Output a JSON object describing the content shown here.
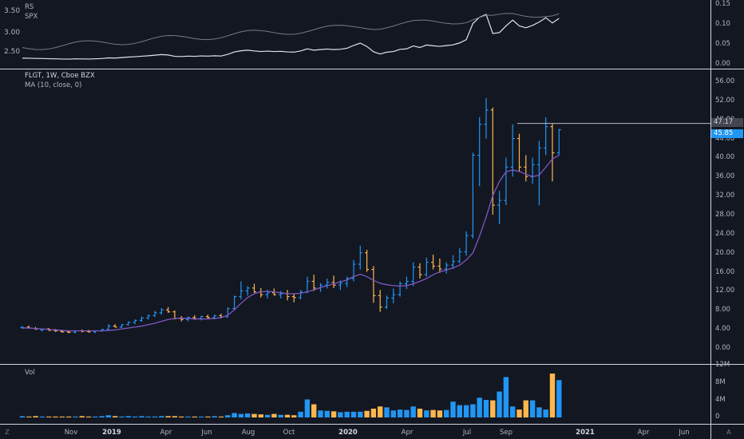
{
  "rs_pane": {
    "labels": [
      "RS",
      "SPX"
    ],
    "left_ticks": [
      "3.50",
      "3.00",
      "2.50"
    ],
    "right_ticks": [
      "0.15",
      "0.10",
      "0.05",
      "0.00"
    ]
  },
  "main_pane": {
    "symbol_line": "FLGT, 1W, Cboe BZX",
    "ma_line": "MA (10, close, 0)",
    "price_ticks": [
      "56.00",
      "52.00",
      "48.00",
      "44.00",
      "40.00",
      "36.00",
      "32.00",
      "28.00",
      "24.00",
      "20.00",
      "16.00",
      "12.00",
      "8.00",
      "4.00",
      "0.00"
    ],
    "tag_high": "47.17",
    "tag_last": "45.85",
    "colors": {
      "up": "#2196f3",
      "down": "#ffb74d",
      "ma": "#7e57c2",
      "tag_last_bg": "#2196f3",
      "tag_high_bg": "#787b86"
    }
  },
  "volume_pane": {
    "label": "Vol",
    "ticks": [
      "12M",
      "8M",
      "4M",
      "0"
    ]
  },
  "time_axis": {
    "labels": [
      "Nov",
      "2019",
      "Apr",
      "Jun",
      "Aug",
      "Oct",
      "2020",
      "Apr",
      "Jul",
      "Sep",
      "2021",
      "Apr",
      "Jun"
    ],
    "bold": [
      false,
      true,
      false,
      false,
      false,
      false,
      true,
      false,
      false,
      false,
      true,
      false,
      false
    ]
  },
  "corner": {
    "left_icon": "Z",
    "right_icon": "A"
  },
  "chart_data": {
    "type": "ohlc",
    "title": "FLGT, 1W, Cboe BZX",
    "ylim": [
      0,
      56
    ],
    "series": [
      {
        "name": "MA (10, close, 0)",
        "values": [
          4.2,
          4.2,
          4.1,
          4.0,
          3.9,
          3.8,
          3.7,
          3.6,
          3.6,
          3.6,
          3.6,
          3.6,
          3.6,
          3.7,
          3.8,
          4.0,
          4.2,
          4.4,
          4.6,
          4.9,
          5.2,
          5.6,
          6.0,
          6.2,
          6.3,
          6.2,
          6.1,
          6.1,
          6.1,
          6.2,
          6.4,
          6.9,
          8.0,
          9.4,
          10.6,
          11.4,
          11.8,
          11.9,
          11.8,
          11.6,
          11.4,
          11.4,
          11.5,
          11.8,
          12.2,
          12.7,
          13.1,
          13.5,
          13.9,
          14.3,
          15.0,
          15.5,
          15.0,
          14.2,
          13.6,
          13.3,
          13.1,
          13.0,
          13.1,
          13.5,
          14.0,
          14.6,
          15.4,
          16.0,
          16.4,
          16.8,
          17.4,
          18.5,
          20.0,
          23.5,
          27.5,
          32.0,
          35.0,
          37.0,
          37.4,
          37.1,
          36.5,
          36.0,
          36.3,
          38.0,
          39.7,
          40.5
        ]
      }
    ],
    "bars": [
      [
        4.3,
        4.6,
        4.0,
        4.3
      ],
      [
        4.4,
        4.7,
        4.1,
        4.2
      ],
      [
        4.1,
        4.4,
        3.8,
        4.0
      ],
      [
        3.8,
        4.1,
        3.5,
        3.9
      ],
      [
        4.0,
        4.2,
        3.6,
        3.7
      ],
      [
        3.7,
        4.0,
        3.4,
        3.6
      ],
      [
        3.5,
        3.8,
        3.2,
        3.4
      ],
      [
        3.4,
        3.7,
        3.1,
        3.3
      ],
      [
        3.3,
        3.7,
        3.1,
        3.6
      ],
      [
        3.6,
        3.9,
        3.3,
        3.5
      ],
      [
        3.5,
        3.8,
        3.2,
        3.4
      ],
      [
        3.4,
        3.7,
        3.1,
        3.6
      ],
      [
        3.6,
        4.0,
        3.4,
        3.9
      ],
      [
        3.9,
        5.0,
        3.7,
        4.6
      ],
      [
        4.6,
        5.0,
        4.3,
        4.4
      ],
      [
        4.4,
        5.0,
        4.2,
        4.9
      ],
      [
        4.9,
        5.6,
        4.7,
        5.4
      ],
      [
        5.4,
        6.0,
        5.0,
        5.8
      ],
      [
        5.8,
        6.6,
        5.5,
        6.3
      ],
      [
        6.3,
        7.0,
        6.0,
        6.8
      ],
      [
        6.8,
        7.8,
        6.5,
        7.4
      ],
      [
        7.4,
        8.4,
        7.0,
        8.0
      ],
      [
        8.0,
        8.6,
        7.4,
        7.6
      ],
      [
        7.6,
        7.9,
        6.0,
        6.2
      ],
      [
        6.2,
        6.7,
        5.6,
        6.0
      ],
      [
        6.0,
        6.6,
        5.6,
        6.4
      ],
      [
        6.4,
        6.9,
        5.9,
        6.2
      ],
      [
        6.2,
        6.8,
        5.8,
        6.6
      ],
      [
        6.6,
        7.0,
        6.1,
        6.4
      ],
      [
        6.4,
        7.0,
        6.0,
        6.8
      ],
      [
        6.8,
        7.2,
        6.2,
        6.5
      ],
      [
        6.5,
        8.5,
        6.4,
        8.3
      ],
      [
        8.3,
        11.0,
        8.0,
        10.8
      ],
      [
        10.8,
        14.0,
        10.2,
        12.0
      ],
      [
        12.0,
        13.0,
        11.0,
        12.6
      ],
      [
        12.6,
        13.5,
        11.6,
        11.8
      ],
      [
        11.8,
        12.6,
        10.6,
        11.2
      ],
      [
        11.2,
        12.2,
        10.4,
        11.6
      ],
      [
        11.6,
        12.5,
        11.0,
        11.2
      ],
      [
        11.2,
        12.0,
        10.4,
        11.4
      ],
      [
        11.4,
        12.2,
        10.0,
        10.8
      ],
      [
        10.8,
        11.4,
        9.6,
        10.6
      ],
      [
        10.6,
        12.2,
        10.2,
        11.8
      ],
      [
        11.8,
        15.0,
        11.5,
        14.0
      ],
      [
        14.0,
        15.4,
        12.0,
        12.6
      ],
      [
        12.6,
        13.6,
        11.8,
        13.2
      ],
      [
        13.2,
        14.6,
        12.5,
        13.8
      ],
      [
        13.8,
        15.2,
        12.6,
        13.2
      ],
      [
        13.2,
        14.2,
        12.2,
        13.6
      ],
      [
        13.6,
        15.0,
        12.8,
        14.6
      ],
      [
        14.6,
        18.5,
        14.0,
        17.6
      ],
      [
        17.6,
        21.5,
        16.5,
        20.0
      ],
      [
        20.0,
        20.6,
        16.0,
        16.5
      ],
      [
        16.5,
        17.2,
        9.5,
        11.0
      ],
      [
        11.0,
        12.2,
        7.6,
        8.6
      ],
      [
        8.6,
        11.0,
        8.2,
        10.5
      ],
      [
        10.5,
        12.5,
        9.4,
        11.2
      ],
      [
        11.2,
        14.0,
        10.8,
        13.5
      ],
      [
        13.5,
        15.0,
        12.4,
        14.0
      ],
      [
        14.0,
        18.0,
        13.0,
        17.0
      ],
      [
        17.0,
        17.8,
        14.6,
        15.4
      ],
      [
        15.4,
        19.0,
        15.0,
        18.0
      ],
      [
        18.0,
        19.6,
        16.5,
        17.2
      ],
      [
        17.2,
        18.8,
        15.8,
        16.6
      ],
      [
        16.6,
        18.0,
        15.6,
        17.4
      ],
      [
        17.4,
        19.5,
        16.6,
        18.2
      ],
      [
        18.2,
        21.0,
        17.8,
        20.2
      ],
      [
        20.2,
        24.5,
        19.4,
        23.6
      ],
      [
        23.6,
        41.0,
        23.0,
        40.5
      ],
      [
        40.5,
        48.5,
        34.0,
        47.0
      ],
      [
        47.0,
        52.5,
        44.0,
        50.0
      ],
      [
        50.0,
        50.5,
        28.0,
        30.0
      ],
      [
        30.0,
        33.0,
        26.0,
        31.0
      ],
      [
        31.0,
        40.0,
        30.0,
        38.0
      ],
      [
        38.0,
        47.0,
        36.0,
        44.0
      ],
      [
        44.0,
        45.0,
        37.0,
        38.0
      ],
      [
        38.0,
        40.5,
        35.0,
        36.0
      ],
      [
        36.0,
        40.0,
        34.5,
        38.5
      ],
      [
        38.5,
        43.5,
        30.0,
        42.0
      ],
      [
        42.0,
        48.5,
        40.5,
        46.5
      ],
      [
        46.5,
        47.2,
        35.0,
        41.0
      ],
      [
        41.0,
        46.0,
        40.5,
        45.85
      ]
    ],
    "volume_millions": [
      0.3,
      0.2,
      0.3,
      0.2,
      0.2,
      0.2,
      0.2,
      0.2,
      0.2,
      0.3,
      0.2,
      0.2,
      0.3,
      0.5,
      0.3,
      0.2,
      0.3,
      0.2,
      0.3,
      0.2,
      0.2,
      0.3,
      0.3,
      0.3,
      0.2,
      0.2,
      0.2,
      0.2,
      0.2,
      0.3,
      0.2,
      0.5,
      1.0,
      0.8,
      0.9,
      0.8,
      0.7,
      0.6,
      0.8,
      0.6,
      0.6,
      0.5,
      1.3,
      4.1,
      3.0,
      1.6,
      1.5,
      1.4,
      1.2,
      1.3,
      1.3,
      1.3,
      1.5,
      2.0,
      2.5,
      2.3,
      1.6,
      1.8,
      1.7,
      2.5,
      2.0,
      1.6,
      1.7,
      1.6,
      1.7,
      3.6,
      2.8,
      2.8,
      3.0,
      4.5,
      4.0,
      3.9,
      5.9,
      9.2,
      2.5,
      1.8,
      3.9,
      3.9,
      2.3,
      1.8,
      10.0,
      8.5
    ]
  }
}
